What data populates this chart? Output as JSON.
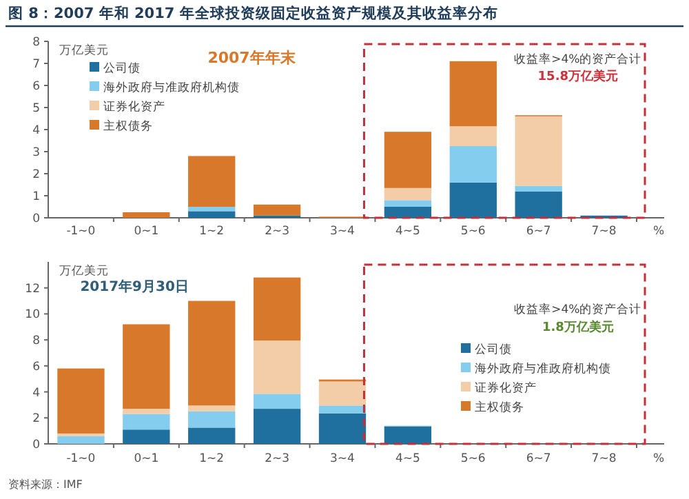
{
  "chart_data": [
    {
      "type": "bar",
      "stacked": true,
      "title": "图 8：2007 年和 2017 年全球投资级固定收益资产规模及其收益率分布",
      "ylabel": "万亿美元",
      "xlabel": "%",
      "legend": "top left",
      "categories": [
        "-1~0",
        "0~1",
        "1~2",
        "2~3",
        "3~4",
        "4~5",
        "5~6",
        "6~7",
        "7~8"
      ],
      "series": [
        {
          "name": "公司债",
          "color": "#1f6f9f",
          "values": [
            0,
            0,
            0.3,
            0.1,
            0,
            0.5,
            1.6,
            1.2,
            0.1
          ]
        },
        {
          "name": "海外政府与准政府机构债",
          "color": "#84cdee",
          "values": [
            0,
            0,
            0.2,
            0,
            0,
            0.3,
            1.65,
            0.25,
            0
          ]
        },
        {
          "name": "证券化资产",
          "color": "#f3cda8",
          "values": [
            0,
            0,
            0,
            0,
            0,
            0.55,
            0.9,
            3.15,
            0
          ]
        },
        {
          "name": "主权债务",
          "color": "#d8782a",
          "values": [
            0,
            0.25,
            2.3,
            0.5,
            0.05,
            2.55,
            2.95,
            0.05,
            0
          ]
        }
      ],
      "ylim": [
        0,
        8
      ],
      "yticks": [
        0,
        1,
        2,
        3,
        4,
        5,
        6,
        7,
        8
      ],
      "annotations": [
        "2007年年末",
        "收益率>4%的资产合计",
        "15.8万亿美元"
      ]
    },
    {
      "type": "bar",
      "stacked": true,
      "ylabel": "万亿美元",
      "xlabel": "%",
      "legend": "right",
      "categories": [
        "-1~0",
        "0~1",
        "1~2",
        "2~3",
        "3~4",
        "4~5",
        "5~6",
        "6~7",
        "7~8"
      ],
      "series": [
        {
          "name": "公司债",
          "color": "#1f6f9f",
          "values": [
            0,
            1.1,
            1.25,
            2.7,
            2.35,
            1.35,
            null,
            null,
            null
          ]
        },
        {
          "name": "海外政府与准政府机构债",
          "color": "#84cdee",
          "values": [
            0.6,
            1.2,
            1.25,
            1.15,
            0.6,
            0.05,
            null,
            null,
            null
          ]
        },
        {
          "name": "证券化资产",
          "color": "#f3cda8",
          "values": [
            0.2,
            0.4,
            0.45,
            4.1,
            1.85,
            0,
            null,
            null,
            null
          ]
        },
        {
          "name": "主权债务",
          "color": "#d8782a",
          "values": [
            5,
            6.5,
            8.05,
            4.85,
            0.15,
            0,
            null,
            null,
            null
          ]
        }
      ],
      "ylim": [
        0,
        14
      ],
      "yticks": [
        0,
        2,
        4,
        6,
        8,
        10,
        12
      ],
      "annotations": [
        "2017年9月30日",
        "收益率>4%的资产合计",
        "1.8万亿美元",
        "资料来源：IMF"
      ]
    }
  ]
}
